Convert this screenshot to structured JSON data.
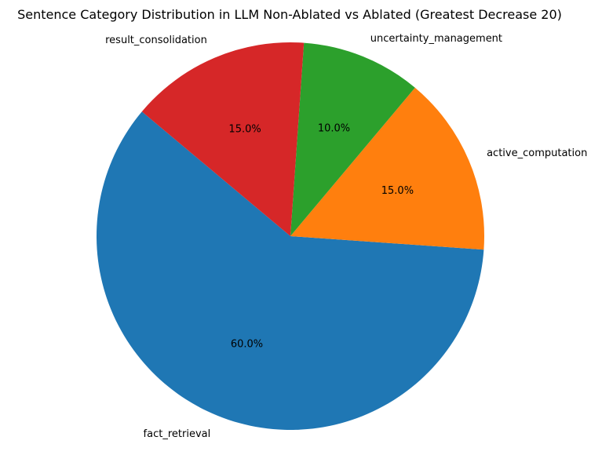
{
  "chart_data": {
    "type": "pie",
    "title": "Sentence Category Distribution in LLM Non-Ablated vs Ablated (Greatest Decrease 20)",
    "slices": [
      {
        "label": "fact_retrieval",
        "value": 60.0,
        "pct_text": "60.0%",
        "color": "#1f77b4"
      },
      {
        "label": "active_computation",
        "value": 15.0,
        "pct_text": "15.0%",
        "color": "#ff7f0e"
      },
      {
        "label": "uncertainty_management",
        "value": 10.0,
        "pct_text": "10.0%",
        "color": "#2ca02c"
      },
      {
        "label": "result_consolidation",
        "value": 15.0,
        "pct_text": "15.0%",
        "color": "#d62728"
      }
    ],
    "start_angle_deg": 140,
    "direction": "counterclockwise",
    "legend": "none"
  }
}
